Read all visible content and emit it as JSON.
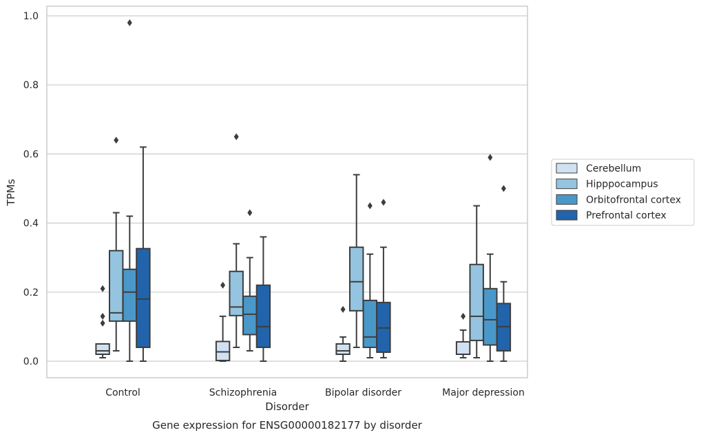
{
  "chart_data": {
    "type": "box",
    "title": "Gene expression for ENSG00000182177 by disorder",
    "xlabel": "Disorder",
    "ylabel": "TPMs",
    "ylim": [
      -0.045,
      1.03
    ],
    "yticks": [
      "0.0",
      "0.2",
      "0.4",
      "0.6",
      "0.8",
      "1.0"
    ],
    "ytick_values": [
      0.0,
      0.2,
      0.4,
      0.6,
      0.8,
      1.0
    ],
    "grid": true,
    "legend_placement": "center-right",
    "categories": [
      "Control",
      "Schizophrenia",
      "Bipolar disorder",
      "Major depression"
    ],
    "series": [
      {
        "name": "Cerebellum",
        "color": "#d0e1f2",
        "boxes": [
          {
            "whislo": 0.01,
            "q1": 0.02,
            "med": 0.03,
            "q3": 0.05,
            "whishi": 0.05,
            "fliers": [
              0.11,
              0.13,
              0.21
            ]
          },
          {
            "whislo": 0.0,
            "q1": 0.002,
            "med": 0.027,
            "q3": 0.057,
            "whishi": 0.13,
            "fliers": [
              0.22
            ]
          },
          {
            "whislo": 0.0,
            "q1": 0.02,
            "med": 0.03,
            "q3": 0.05,
            "whishi": 0.07,
            "fliers": [
              0.15
            ]
          },
          {
            "whislo": 0.01,
            "q1": 0.02,
            "med": 0.02,
            "q3": 0.056,
            "whishi": 0.09,
            "fliers": [
              0.13
            ]
          }
        ]
      },
      {
        "name": "Hipppocampus",
        "color": "#94c4df",
        "boxes": [
          {
            "whislo": 0.03,
            "q1": 0.116,
            "med": 0.14,
            "q3": 0.32,
            "whishi": 0.43,
            "fliers": [
              0.64
            ]
          },
          {
            "whislo": 0.04,
            "q1": 0.132,
            "med": 0.157,
            "q3": 0.26,
            "whishi": 0.34,
            "fliers": [
              0.65
            ]
          },
          {
            "whislo": 0.04,
            "q1": 0.146,
            "med": 0.23,
            "q3": 0.33,
            "whishi": 0.54,
            "fliers": []
          },
          {
            "whislo": 0.01,
            "q1": 0.06,
            "med": 0.13,
            "q3": 0.28,
            "whishi": 0.45,
            "fliers": []
          }
        ]
      },
      {
        "name": "Orbitofrontal cortex",
        "color": "#4a98c9",
        "boxes": [
          {
            "whislo": 0.0,
            "q1": 0.116,
            "med": 0.2,
            "q3": 0.266,
            "whishi": 0.42,
            "fliers": [
              0.98
            ]
          },
          {
            "whislo": 0.03,
            "q1": 0.077,
            "med": 0.136,
            "q3": 0.188,
            "whishi": 0.3,
            "fliers": [
              0.43
            ]
          },
          {
            "whislo": 0.01,
            "q1": 0.04,
            "med": 0.07,
            "q3": 0.176,
            "whishi": 0.31,
            "fliers": [
              0.45
            ]
          },
          {
            "whislo": 0.0,
            "q1": 0.047,
            "med": 0.12,
            "q3": 0.21,
            "whishi": 0.31,
            "fliers": [
              0.59
            ]
          }
        ]
      },
      {
        "name": "Prefrontal cortex",
        "color": "#2164ab",
        "boxes": [
          {
            "whislo": 0.0,
            "q1": 0.04,
            "med": 0.18,
            "q3": 0.326,
            "whishi": 0.62,
            "fliers": []
          },
          {
            "whislo": 0.0,
            "q1": 0.04,
            "med": 0.1,
            "q3": 0.22,
            "whishi": 0.36,
            "fliers": []
          },
          {
            "whislo": 0.01,
            "q1": 0.026,
            "med": 0.096,
            "q3": 0.17,
            "whishi": 0.33,
            "fliers": [
              0.46
            ]
          },
          {
            "whislo": 0.0,
            "q1": 0.03,
            "med": 0.1,
            "q3": 0.167,
            "whishi": 0.23,
            "fliers": [
              0.5
            ]
          }
        ]
      }
    ]
  }
}
